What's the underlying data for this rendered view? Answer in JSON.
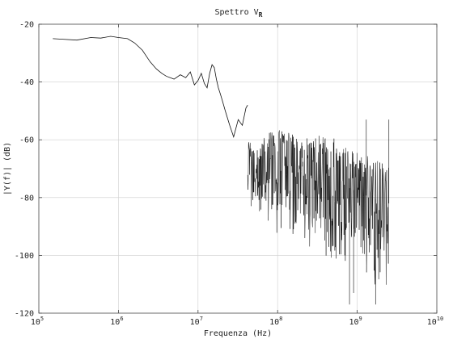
{
  "chart_data": {
    "type": "line",
    "title": "Spettro V",
    "title_subscript": "R",
    "xlabel": "Frequenza (Hz)",
    "ylabel": "|Y(f)| (dB)",
    "xscale": "log",
    "xlim": [
      100000,
      10000000000
    ],
    "ylim": [
      -120,
      -20
    ],
    "grid": true,
    "x_ticks": [
      {
        "value": 100000,
        "mantissa": "10",
        "exp": "5"
      },
      {
        "value": 1000000,
        "mantissa": "10",
        "exp": "6"
      },
      {
        "value": 10000000,
        "mantissa": "10",
        "exp": "7"
      },
      {
        "value": 100000000,
        "mantissa": "10",
        "exp": "8"
      },
      {
        "value": 1000000000,
        "mantissa": "10",
        "exp": "9"
      },
      {
        "value": 10000000000,
        "mantissa": "10",
        "exp": "10"
      }
    ],
    "y_ticks": [
      -20,
      -40,
      -60,
      -80,
      -100,
      -120
    ],
    "smooth_series": {
      "x": [
        150000,
        200000,
        300000,
        450000,
        600000,
        800000,
        1000000,
        1300000,
        1600000,
        2000000,
        2500000,
        3000000,
        3500000,
        4000000,
        5000000,
        6000000,
        7000000,
        8000000,
        9000000,
        10000000,
        11000000,
        12000000,
        13000000,
        14000000,
        15000000,
        16000000,
        17000000,
        18000000,
        19000000,
        20000000,
        22000000,
        25000000,
        28000000,
        32000000,
        36000000,
        40000000,
        42000000
      ],
      "y": [
        -25,
        -25.2,
        -25.5,
        -24.6,
        -24.8,
        -24.2,
        -24.6,
        -25,
        -26.5,
        -29,
        -33,
        -35.5,
        -37,
        -38,
        -39,
        -37.5,
        -38.5,
        -36.5,
        -41,
        -39.5,
        -37,
        -40.5,
        -42,
        -37,
        -34,
        -35,
        -39,
        -42,
        -44,
        -46,
        -50,
        -55,
        -59,
        -53,
        -55,
        -49,
        -48
      ]
    },
    "noisy_band": {
      "x_start": 42000000,
      "x_end": 2500000000,
      "upper_envelope": [
        [
          42000000,
          -60
        ],
        [
          60000000,
          -62
        ],
        [
          80000000,
          -56
        ],
        [
          120000000,
          -57
        ],
        [
          200000000,
          -59
        ],
        [
          400000000,
          -58
        ],
        [
          700000000,
          -61
        ],
        [
          1000000000,
          -64
        ],
        [
          1500000000,
          -66
        ],
        [
          2500000000,
          -69
        ]
      ],
      "lower_envelope": [
        [
          42000000,
          -82
        ],
        [
          60000000,
          -88
        ],
        [
          80000000,
          -92
        ],
        [
          120000000,
          -94
        ],
        [
          200000000,
          -96
        ],
        [
          400000000,
          -100
        ],
        [
          700000000,
          -104
        ],
        [
          1000000000,
          -107
        ],
        [
          1500000000,
          -110
        ],
        [
          2500000000,
          -113
        ]
      ],
      "center": [
        [
          42000000,
          -70
        ],
        [
          60000000,
          -72
        ],
        [
          80000000,
          -68
        ],
        [
          120000000,
          -70
        ],
        [
          200000000,
          -73
        ],
        [
          400000000,
          -74
        ],
        [
          700000000,
          -76
        ],
        [
          1000000000,
          -78
        ],
        [
          1500000000,
          -80
        ],
        [
          2500000000,
          -82
        ]
      ],
      "spikes": [
        [
          1300000000,
          -53
        ],
        [
          2500000000,
          -53
        ],
        [
          800000000,
          -117
        ],
        [
          1700000000,
          -117
        ],
        [
          900000000,
          -113
        ]
      ]
    }
  }
}
